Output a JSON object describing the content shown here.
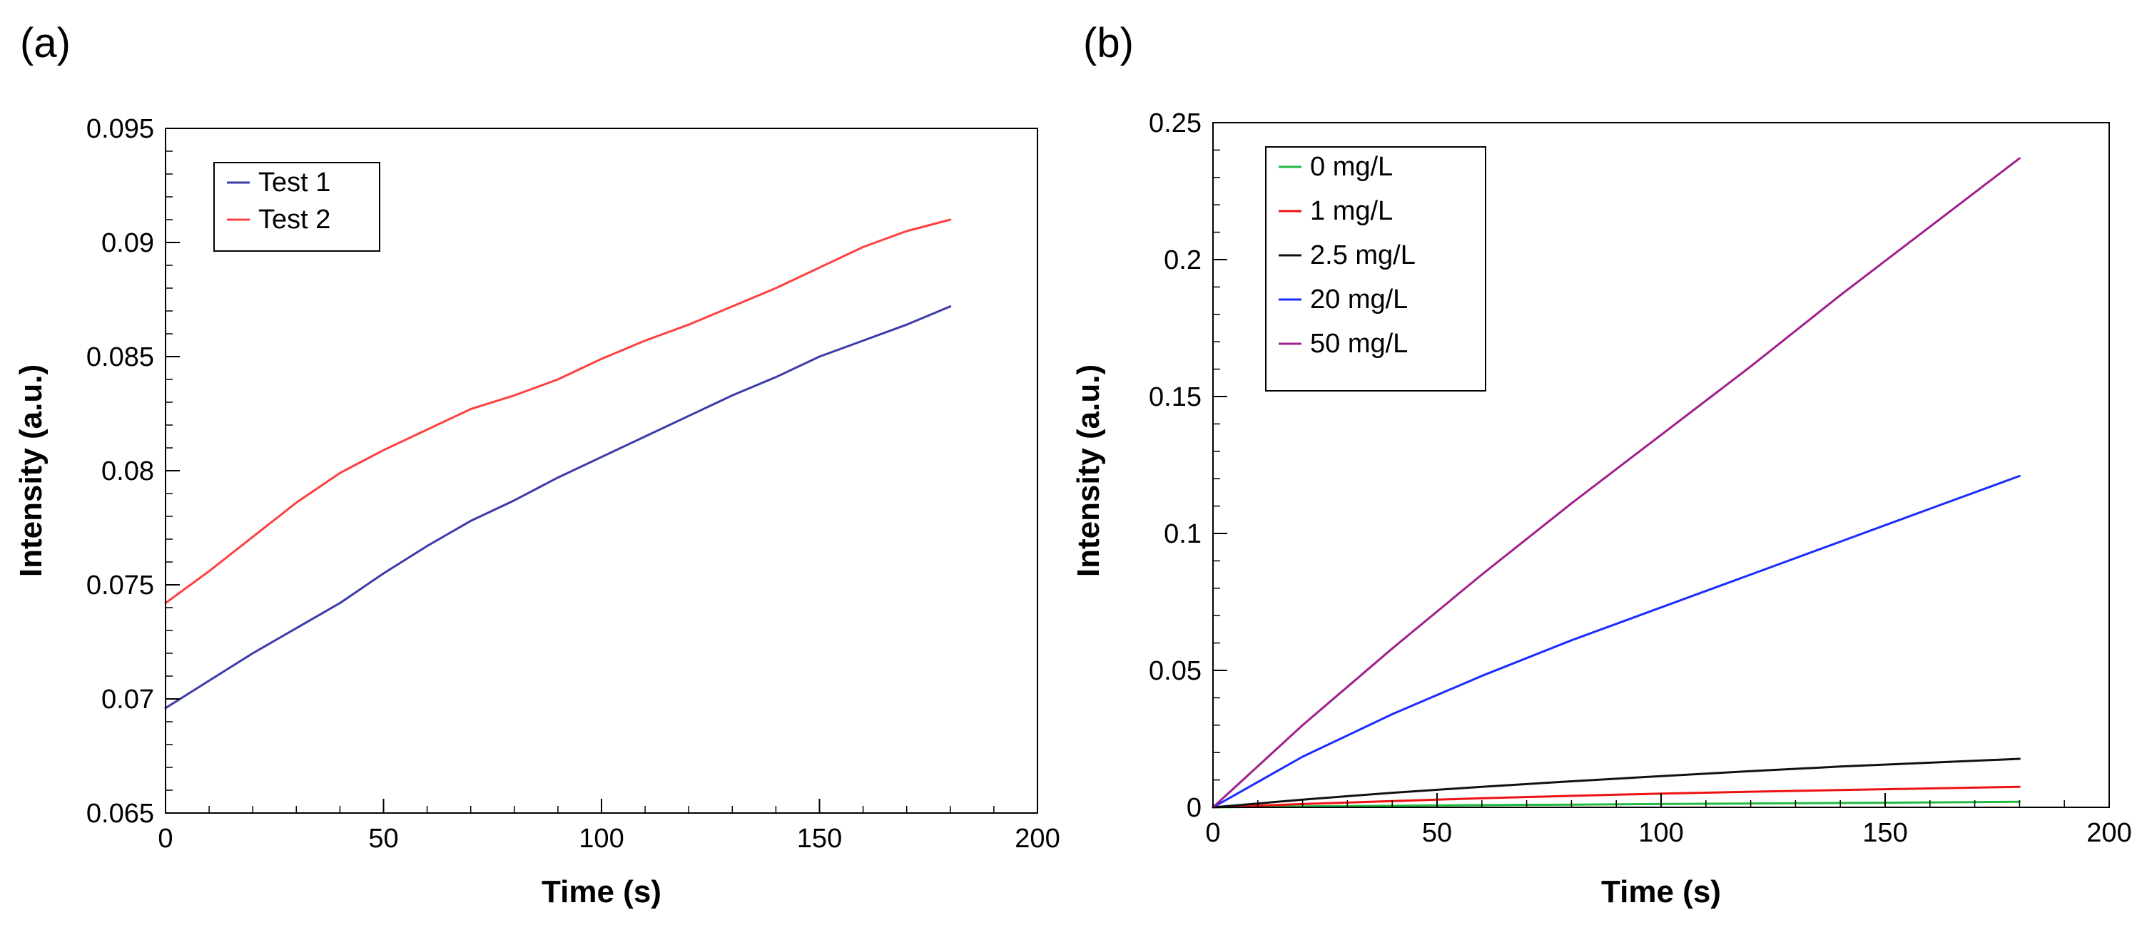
{
  "chart_data": [
    {
      "panel_label": "(a)",
      "type": "line",
      "xlabel": "Time (s)",
      "ylabel": "Intensity (a.u.)",
      "xlim": [
        0,
        200
      ],
      "ylim": [
        0.065,
        0.095
      ],
      "xticks": [
        "0",
        "50",
        "100",
        "150",
        "200"
      ],
      "yticks": [
        "0.065",
        "0.07",
        "0.075",
        "0.08",
        "0.085",
        "0.09",
        "0.095"
      ],
      "grid": false,
      "legend_position": "top-left",
      "series": [
        {
          "name": "Test 1",
          "color": "#3b3bab",
          "x": [
            0,
            10,
            20,
            30,
            40,
            50,
            60,
            70,
            80,
            90,
            100,
            110,
            120,
            130,
            140,
            150,
            160,
            170,
            180
          ],
          "y": [
            0.0696,
            0.0708,
            0.072,
            0.0731,
            0.0742,
            0.0755,
            0.0767,
            0.0778,
            0.0787,
            0.0797,
            0.0806,
            0.0815,
            0.0824,
            0.0833,
            0.0841,
            0.085,
            0.0857,
            0.0864,
            0.0872
          ]
        },
        {
          "name": "Test 2",
          "color": "#ff4040",
          "x": [
            0,
            10,
            20,
            30,
            40,
            50,
            60,
            70,
            80,
            90,
            100,
            110,
            120,
            130,
            140,
            150,
            160,
            170,
            180
          ],
          "y": [
            0.0742,
            0.0756,
            0.0771,
            0.0786,
            0.0799,
            0.0809,
            0.0818,
            0.0827,
            0.0833,
            0.084,
            0.0849,
            0.0857,
            0.0864,
            0.0872,
            0.088,
            0.0889,
            0.0898,
            0.0905,
            0.091
          ]
        }
      ]
    },
    {
      "panel_label": "(b)",
      "type": "line",
      "xlabel": "Time (s)",
      "ylabel": "Intensity (a.u.)",
      "xlim": [
        0,
        200
      ],
      "ylim": [
        0,
        0.25
      ],
      "xticks": [
        "0",
        "50",
        "100",
        "150",
        "200"
      ],
      "yticks": [
        "0",
        "0.05",
        "0.1",
        "0.15",
        "0.2",
        "0.25"
      ],
      "grid": false,
      "legend_position": "top-left",
      "series": [
        {
          "name": "0 mg/L",
          "color": "#22bb44",
          "x": [
            0,
            20,
            40,
            60,
            80,
            100,
            120,
            140,
            160,
            180
          ],
          "y": [
            0.0,
            0.0003,
            0.0006,
            0.0008,
            0.001,
            0.0012,
            0.0014,
            0.0016,
            0.0018,
            0.002
          ]
        },
        {
          "name": "1 mg/L",
          "color": "#ee1111",
          "x": [
            0,
            20,
            40,
            60,
            80,
            100,
            120,
            140,
            160,
            180
          ],
          "y": [
            0.0,
            0.0012,
            0.0023,
            0.0033,
            0.0042,
            0.005,
            0.0057,
            0.0063,
            0.0069,
            0.0075
          ]
        },
        {
          "name": "2.5 mg/L",
          "color": "#111111",
          "x": [
            0,
            20,
            40,
            60,
            80,
            100,
            120,
            140,
            160,
            180
          ],
          "y": [
            0.0,
            0.0028,
            0.0053,
            0.0075,
            0.0095,
            0.0114,
            0.0132,
            0.0149,
            0.0163,
            0.0177
          ]
        },
        {
          "name": "20 mg/L",
          "color": "#1a2cff",
          "x": [
            0,
            20,
            40,
            60,
            80,
            100,
            120,
            140,
            160,
            180
          ],
          "y": [
            0.0,
            0.0185,
            0.034,
            0.048,
            0.061,
            0.073,
            0.085,
            0.097,
            0.109,
            0.121
          ]
        },
        {
          "name": "50 mg/L",
          "color": "#a0208c",
          "x": [
            0,
            20,
            40,
            60,
            80,
            100,
            120,
            140,
            160,
            180
          ],
          "y": [
            0.0,
            0.03,
            0.058,
            0.085,
            0.111,
            0.136,
            0.161,
            0.187,
            0.212,
            0.237
          ]
        }
      ]
    }
  ]
}
